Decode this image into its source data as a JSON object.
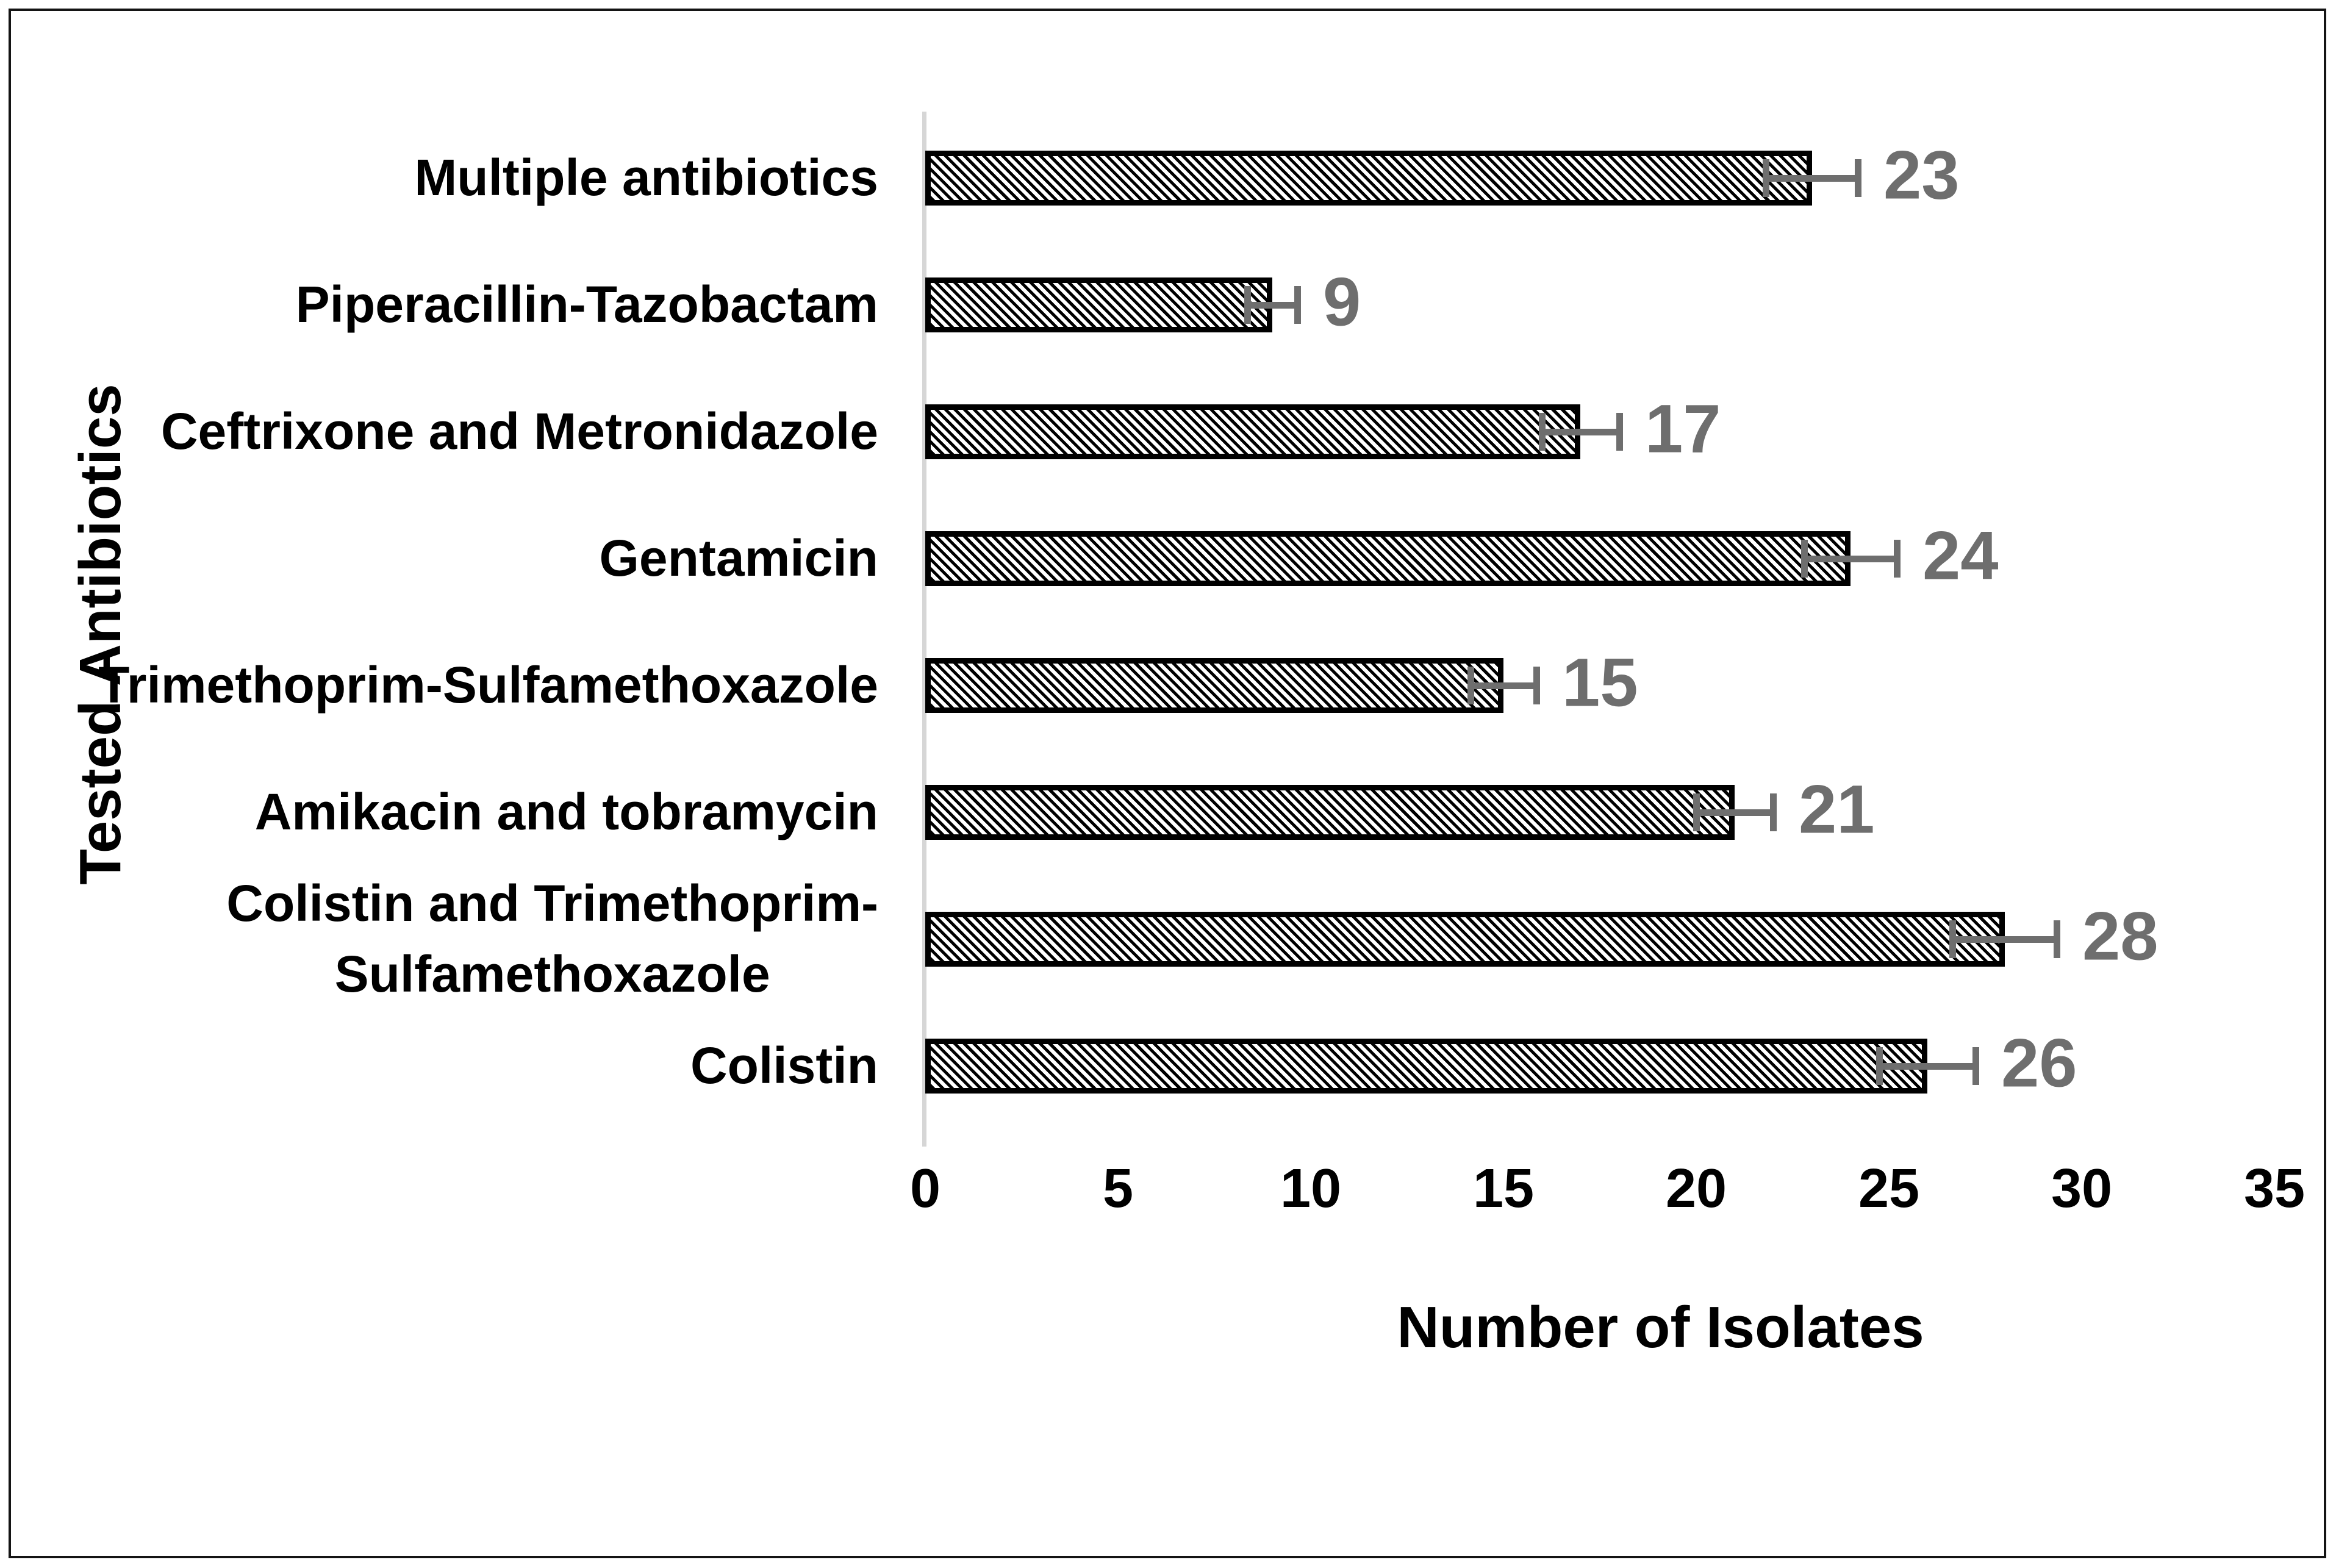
{
  "figure": {
    "x_axis_title": "Number of Isolates",
    "y_axis_title": "Tested Antibiotics"
  },
  "chart_data": {
    "type": "bar",
    "orientation": "horizontal",
    "title": "",
    "xlabel": "Number of Isolates",
    "ylabel": "Tested Antibiotics",
    "categories": [
      "Multiple antibiotics",
      "Piperacillin-Tazobactam",
      "Ceftrixone and Metronidazole",
      "Gentamicin",
      "Trimethoprim-Sulfamethoxazole",
      "Amikacin and tobramycin",
      "Colistin and Trimethoprim-\nSulfamethoxazole",
      "Colistin"
    ],
    "values": [
      23,
      9,
      17,
      24,
      15,
      21,
      28,
      26
    ],
    "data_labels": [
      "23",
      "9",
      "17",
      "24",
      "15",
      "21",
      "28",
      "26"
    ],
    "error_bars": [
      1.2,
      0.65,
      1.0,
      1.2,
      0.85,
      1.0,
      1.35,
      1.25
    ],
    "xlim": [
      0,
      35
    ],
    "xticks": [
      0,
      5,
      10,
      15,
      20,
      25,
      30,
      35
    ],
    "grid": false,
    "legend": null,
    "bar_fill": "black-diagonal-hatch-on-white",
    "colors": {
      "bar_stripe": "#000000",
      "bar_background": "#ffffff",
      "bar_border": "#000000",
      "error_bar": "#6e6e6e",
      "value_label": "#6e6e6e",
      "axis_line": "#d6d6d6",
      "text": "#000000",
      "frame_border": "#141414"
    }
  }
}
